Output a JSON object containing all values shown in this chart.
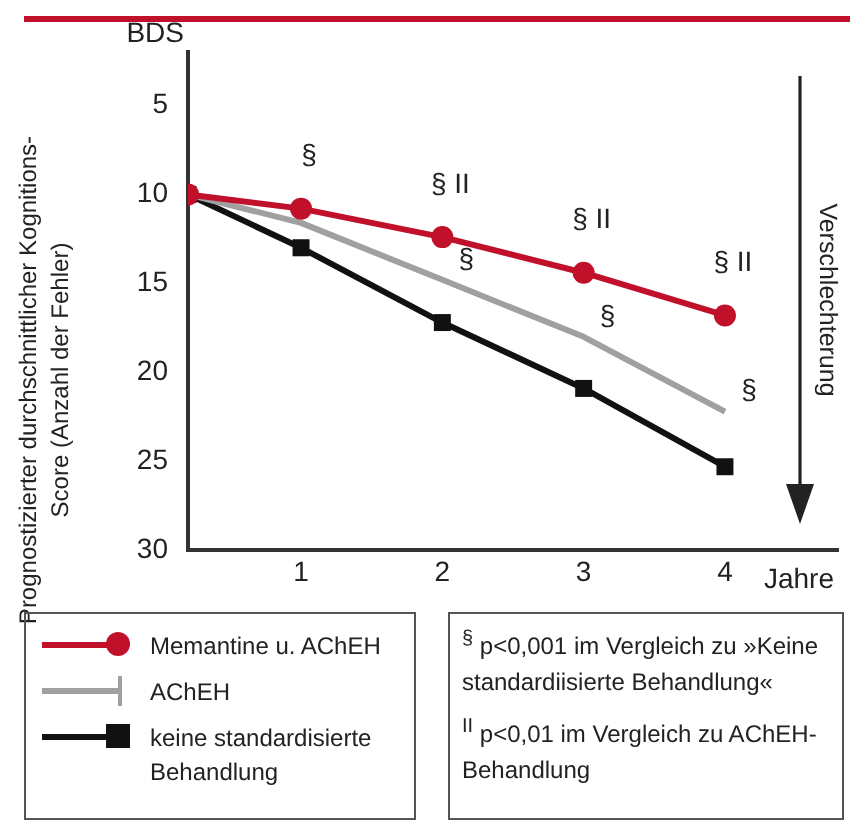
{
  "chart_data": {
    "type": "line",
    "title": "BDS",
    "ylabel": "Prognostizierter durchschnittlicher Kognitions-Score (Anzahl der Fehler)",
    "xlabel": "Jahre",
    "xlim": [
      0.2,
      4.8
    ],
    "xticks": [
      1,
      2,
      3,
      4
    ],
    "ylim": [
      30,
      2
    ],
    "yticks": [
      5,
      10,
      15,
      20,
      25,
      30
    ],
    "grid": false,
    "legend": "bottom left",
    "line_style": "solid",
    "series": [
      {
        "name": "Memantine u. AChEH",
        "color": "#c0102a",
        "marker": "circle",
        "x": [
          0.2,
          1,
          2,
          3,
          4
        ],
        "values": [
          10,
          10.8,
          12.4,
          14.4,
          16.8
        ]
      },
      {
        "name": "AChEH",
        "color": "#a0a0a0",
        "marker": "none",
        "x": [
          0.2,
          1,
          2,
          3,
          4
        ],
        "values": [
          10,
          11.6,
          14.8,
          18.0,
          22.2
        ]
      },
      {
        "name": "keine standardisierte Behandlung",
        "color": "#111111",
        "marker": "square",
        "x": [
          0.2,
          1,
          2,
          3,
          4
        ],
        "values": [
          10,
          13.0,
          17.2,
          20.9,
          25.3
        ]
      }
    ],
    "annotations": [
      {
        "text": "§",
        "x": 1,
        "y": 10.8
      },
      {
        "text": "§ II",
        "x": 2,
        "y": 12.4
      },
      {
        "text": "§ II",
        "x": 3,
        "y": 14.4
      },
      {
        "text": "§ II",
        "x": 4,
        "y": 16.8
      },
      {
        "text": "§",
        "x": 2,
        "y": 14.8
      },
      {
        "text": "§",
        "x": 3,
        "y": 18.0
      },
      {
        "text": "§",
        "x": 4,
        "y": 22.2
      },
      "Verschlechterung",
      "$^{§}$ p<0,001 im Vergleich zu »Keine standardiisierte Behandlung«",
      "$^{II}$ p<0,01 im Vergleich zu AChEH-Behandlung"
    ]
  }
}
